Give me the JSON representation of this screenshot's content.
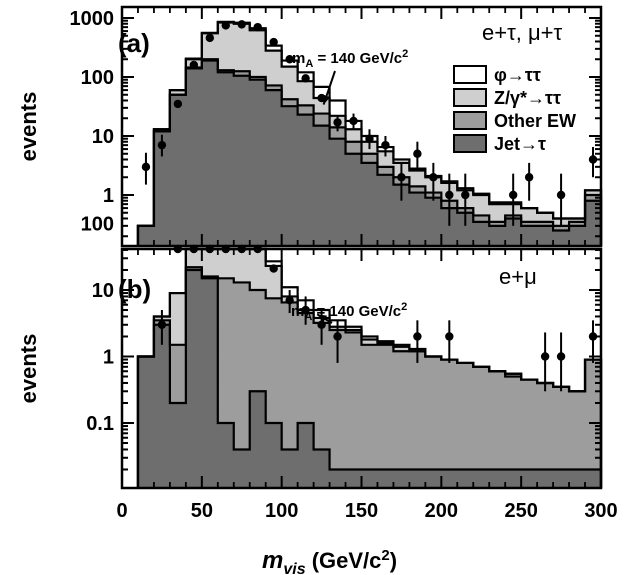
{
  "chart_data": [
    {
      "type": "histogram",
      "panel_label": "(a)",
      "channel": "e+τ, μ+τ",
      "ylabel": "events",
      "yscale": "log",
      "yticks": [
        "1",
        "10",
        "100",
        "1000"
      ],
      "ylim": [
        0.2,
        1200
      ],
      "annotation": "m",
      "annotation_sub": "A",
      "annotation_rest": " = 140 GeV/c",
      "annotation_sup": "2",
      "annotation_arrow_to": [
        125,
        27
      ],
      "bin_edges": [
        10,
        20,
        30,
        40,
        50,
        60,
        70,
        80,
        90,
        100,
        110,
        120,
        130,
        140,
        150,
        160,
        170,
        180,
        190,
        200,
        210,
        220,
        230,
        240,
        250,
        260,
        270,
        280,
        290,
        300
      ],
      "series": [
        {
          "name": "Jet→τ",
          "color": "#6e6e6e",
          "values": [
            0.3,
            12,
            50,
            140,
            190,
            120,
            105,
            90,
            60,
            32,
            23,
            15,
            9,
            5,
            3.5,
            2.2,
            1.5,
            1.1,
            0.9,
            0.6,
            0.5,
            0.35,
            0.3,
            0.4,
            0.3,
            0.3,
            0.25,
            0.3,
            0.8
          ]
        },
        {
          "name": "Other EW",
          "color": "#9d9d9d",
          "values": [
            0.3,
            12,
            50,
            145,
            200,
            130,
            125,
            100,
            72,
            42,
            33,
            24,
            14,
            8,
            5,
            3,
            2,
            1.4,
            1.1,
            0.8,
            0.6,
            0.45,
            0.35,
            0.45,
            0.35,
            0.35,
            0.3,
            0.35,
            1.0
          ]
        },
        {
          "name": "Z/γ*→ττ",
          "color": "#cfcfcf",
          "values": [
            0.3,
            13,
            60,
            200,
            550,
            840,
            800,
            620,
            280,
            150,
            85,
            44,
            22,
            13,
            8,
            5.5,
            3.5,
            2.6,
            2,
            1.6,
            1.2,
            1,
            0.7,
            0.7,
            0.6,
            0.5,
            0.4,
            0.4,
            1.2
          ]
        },
        {
          "name": "φ→ττ",
          "color": "#ffffff",
          "values": [
            0.3,
            13,
            60,
            205,
            560,
            860,
            830,
            670,
            340,
            190,
            120,
            68,
            40,
            18,
            10,
            6.5,
            4,
            2.8,
            2.1,
            1.7,
            1.3,
            1.05,
            0.75,
            0.75,
            0.6,
            0.5,
            0.4,
            0.4,
            1.2
          ]
        }
      ],
      "data_points": [
        {
          "x": 15,
          "y": 3,
          "lo": 1.5,
          "hi": 5.2
        },
        {
          "x": 25,
          "y": 7,
          "lo": 4.5,
          "hi": 10.5
        },
        {
          "x": 35,
          "y": 35
        },
        {
          "x": 45,
          "y": 160
        },
        {
          "x": 55,
          "y": 460
        },
        {
          "x": 65,
          "y": 750
        },
        {
          "x": 75,
          "y": 780
        },
        {
          "x": 85,
          "y": 700
        },
        {
          "x": 95,
          "y": 390
        },
        {
          "x": 105,
          "y": 200
        },
        {
          "x": 115,
          "y": 95
        },
        {
          "x": 125,
          "y": 44
        },
        {
          "x": 135,
          "y": 17,
          "lo": 12,
          "hi": 22
        },
        {
          "x": 145,
          "y": 18,
          "lo": 13,
          "hi": 24
        },
        {
          "x": 155,
          "y": 9,
          "lo": 6,
          "hi": 13
        },
        {
          "x": 165,
          "y": 7,
          "lo": 4.5,
          "hi": 10
        },
        {
          "x": 175,
          "y": 2,
          "lo": 0.8,
          "hi": 3.5
        },
        {
          "x": 185,
          "y": 5,
          "lo": 2.8,
          "hi": 8
        },
        {
          "x": 195,
          "y": 2,
          "lo": 0.8,
          "hi": 3.5
        },
        {
          "x": 205,
          "y": 1,
          "lo": 0.3,
          "hi": 2.3
        },
        {
          "x": 215,
          "y": 1,
          "lo": 0.3,
          "hi": 2.3
        },
        {
          "x": 245,
          "y": 1,
          "lo": 0.3,
          "hi": 2.3
        },
        {
          "x": 255,
          "y": 2,
          "lo": 0.8,
          "hi": 3.5
        },
        {
          "x": 275,
          "y": 1,
          "lo": 0.3,
          "hi": 2.3
        },
        {
          "x": 295,
          "y": 4,
          "lo": 2,
          "hi": 6.5
        }
      ]
    },
    {
      "type": "histogram",
      "panel_label": "(b)",
      "channel": "e+μ",
      "ylabel": "events",
      "yscale": "log",
      "yticks": [
        "0.1",
        "1",
        "10",
        "100"
      ],
      "ylim": [
        0.02,
        250
      ],
      "annotation": "m",
      "annotation_sub": "A",
      "annotation_rest": " = 140 GeV/c",
      "annotation_sup": "2",
      "annotation_arrow_to": [
        121,
        3.5
      ],
      "bin_edges": [
        10,
        20,
        30,
        40,
        50,
        60,
        70,
        80,
        90,
        100,
        110,
        120,
        130,
        140,
        150,
        160,
        170,
        180,
        190,
        200,
        210,
        220,
        230,
        240,
        250,
        260,
        270,
        280,
        290,
        300
      ],
      "series": [
        {
          "name": "Jet→τ",
          "color": "#6e6e6e",
          "values": [
            1,
            3,
            0.2,
            20,
            15,
            0.1,
            0.04,
            0.3,
            0.1,
            0.04,
            0.1,
            0.04,
            0.02,
            0.02,
            0.02,
            0.02,
            0.02,
            0.02,
            0.02,
            0.02,
            0.02,
            0.02,
            0.02,
            0.02,
            0.02,
            0.02,
            0.02,
            0.02,
            0.02
          ]
        },
        {
          "name": "Other EW",
          "color": "#9d9d9d",
          "values": [
            1,
            3.5,
            1.5,
            22,
            16,
            15,
            13,
            10,
            7.5,
            6.5,
            4.5,
            3.2,
            2.5,
            2.3,
            1.5,
            1.5,
            1.2,
            1.2,
            1.0,
            0.9,
            0.8,
            0.7,
            0.6,
            0.5,
            0.45,
            0.4,
            0.35,
            0.3,
            0.9
          ]
        },
        {
          "name": "Z/γ*→ττ",
          "color": "#cfcfcf",
          "values": [
            1,
            4,
            9,
            60,
            150,
            175,
            120,
            75,
            23,
            8,
            5,
            3.8,
            2.8,
            2.5,
            1.8,
            1.6,
            1.4,
            1.2,
            1.0,
            0.9,
            0.8,
            0.7,
            0.6,
            0.55,
            0.45,
            0.4,
            0.35,
            0.3,
            0.9
          ]
        },
        {
          "name": "φ→ττ",
          "color": "#ffffff",
          "values": [
            1,
            4,
            9,
            60,
            155,
            185,
            130,
            85,
            27,
            11,
            7,
            5,
            3.5,
            2.8,
            2,
            1.7,
            1.5,
            1.3,
            1.0,
            0.9,
            0.8,
            0.7,
            0.6,
            0.55,
            0.45,
            0.4,
            0.35,
            0.3,
            0.9
          ]
        }
      ],
      "data_points": [
        {
          "x": 25,
          "y": 3,
          "lo": 1.5,
          "hi": 5
        },
        {
          "x": 35,
          "y": 85
        },
        {
          "x": 45,
          "y": 160
        },
        {
          "x": 55,
          "y": 175
        },
        {
          "x": 65,
          "y": 155
        },
        {
          "x": 75,
          "y": 105
        },
        {
          "x": 85,
          "y": 48
        },
        {
          "x": 95,
          "y": 21
        },
        {
          "x": 105,
          "y": 7,
          "lo": 4.5,
          "hi": 10
        },
        {
          "x": 115,
          "y": 5,
          "lo": 3,
          "hi": 8
        },
        {
          "x": 125,
          "y": 3,
          "lo": 1.5,
          "hi": 5
        },
        {
          "x": 135,
          "y": 2,
          "lo": 0.8,
          "hi": 3.5
        },
        {
          "x": 185,
          "y": 2,
          "lo": 0.8,
          "hi": 3.5
        },
        {
          "x": 205,
          "y": 2,
          "lo": 0.8,
          "hi": 3.5
        },
        {
          "x": 265,
          "y": 1,
          "lo": 0.3,
          "hi": 2.3
        },
        {
          "x": 275,
          "y": 1,
          "lo": 0.3,
          "hi": 2.3
        },
        {
          "x": 295,
          "y": 2,
          "lo": 0.8,
          "hi": 3.5
        }
      ]
    }
  ],
  "xaxis": {
    "label_main": "m",
    "label_sub": "vis",
    "label_rest": "  (GeV/c",
    "label_sup": "2",
    "label_close": ")",
    "xlim": [
      0,
      300
    ],
    "ticks": [
      "0",
      "50",
      "100",
      "150",
      "200",
      "250",
      "300"
    ]
  },
  "legend": {
    "placement": "top-right of panel (a)",
    "entries": [
      {
        "label": "φ→ττ",
        "color": "#ffffff"
      },
      {
        "label": "Z/γ*→ττ",
        "color": "#cfcfcf"
      },
      {
        "label": "Other EW",
        "color": "#9d9d9d"
      },
      {
        "label": "Jet→τ",
        "color": "#6e6e6e"
      }
    ]
  }
}
